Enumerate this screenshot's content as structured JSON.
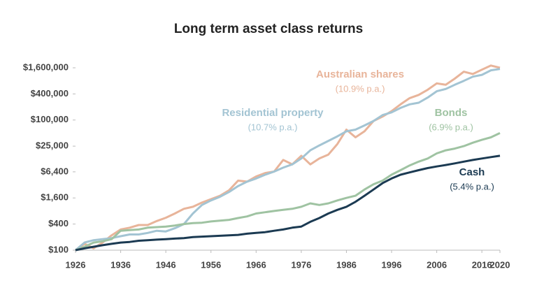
{
  "chart_data": {
    "type": "line",
    "title": "Long term asset class returns",
    "log_scale": true,
    "grid": false,
    "x": [
      1926,
      1928,
      1930,
      1932,
      1934,
      1936,
      1938,
      1940,
      1942,
      1944,
      1946,
      1948,
      1950,
      1952,
      1954,
      1956,
      1958,
      1960,
      1962,
      1964,
      1966,
      1968,
      1970,
      1972,
      1974,
      1976,
      1978,
      1980,
      1982,
      1984,
      1986,
      1988,
      1990,
      1992,
      1994,
      1996,
      1998,
      2000,
      2002,
      2004,
      2006,
      2008,
      2010,
      2012,
      2014,
      2016,
      2018,
      2020
    ],
    "series": [
      {
        "name": "Australian shares",
        "note": "(10.9% p.a.)",
        "color": "#e8b49a",
        "values": [
          100,
          140,
          110,
          150,
          220,
          300,
          330,
          380,
          380,
          470,
          560,
          700,
          900,
          1000,
          1250,
          1500,
          1800,
          2400,
          4000,
          3800,
          5000,
          6000,
          6500,
          12000,
          9500,
          15000,
          9500,
          13000,
          16000,
          28000,
          60000,
          40000,
          55000,
          95000,
          120000,
          160000,
          230000,
          320000,
          380000,
          500000,
          700000,
          650000,
          900000,
          1300000,
          1150000,
          1450000,
          1800000,
          1600000
        ]
      },
      {
        "name": "Residential property",
        "note": "(10.7% p.a.)",
        "color": "#a3c4d3",
        "values": [
          100,
          150,
          170,
          180,
          190,
          210,
          230,
          230,
          250,
          280,
          270,
          320,
          400,
          700,
          1100,
          1400,
          1700,
          2200,
          3000,
          3800,
          4500,
          5500,
          6500,
          8000,
          9500,
          13000,
          20000,
          26000,
          33000,
          42000,
          55000,
          60000,
          75000,
          95000,
          130000,
          150000,
          190000,
          230000,
          250000,
          330000,
          460000,
          520000,
          650000,
          800000,
          1000000,
          1100000,
          1400000,
          1500000
        ]
      },
      {
        "name": "Bonds",
        "note": "(6.9% p.a.)",
        "color": "#9fc3a2",
        "values": [
          100,
          120,
          150,
          160,
          180,
          280,
          290,
          300,
          330,
          340,
          350,
          370,
          400,
          420,
          430,
          460,
          480,
          500,
          550,
          600,
          700,
          750,
          800,
          850,
          900,
          1000,
          1200,
          1100,
          1200,
          1400,
          1600,
          1800,
          2500,
          3300,
          4000,
          5500,
          7000,
          9000,
          11000,
          13000,
          17000,
          20000,
          22000,
          25000,
          30000,
          35000,
          40000,
          50000
        ]
      },
      {
        "name": "Cash",
        "note": "(5.4% p.a.)",
        "color": "#1b3a52",
        "values": [
          100,
          110,
          120,
          130,
          140,
          150,
          155,
          165,
          170,
          175,
          180,
          185,
          190,
          200,
          205,
          210,
          215,
          220,
          225,
          240,
          250,
          260,
          280,
          300,
          330,
          350,
          450,
          550,
          700,
          850,
          1000,
          1300,
          1800,
          2500,
          3500,
          4500,
          5500,
          6200,
          7000,
          7800,
          8500,
          9200,
          10000,
          11000,
          12000,
          13000,
          14000,
          15000
        ]
      }
    ],
    "xlim": [
      1926,
      2020
    ],
    "xticks": [
      1926,
      1936,
      1946,
      1956,
      1966,
      1976,
      1986,
      1996,
      2006,
      2016,
      2020
    ],
    "ylim": [
      100,
      1600000
    ],
    "yticks": [
      {
        "value": 100,
        "label": "$100"
      },
      {
        "value": 400,
        "label": "$400"
      },
      {
        "value": 1600,
        "label": "$1,600"
      },
      {
        "value": 6400,
        "label": "$6,400"
      },
      {
        "value": 25000,
        "label": "$25,000"
      },
      {
        "value": 100000,
        "label": "$100,000"
      },
      {
        "value": 400000,
        "label": "$400,000"
      },
      {
        "value": 1600000,
        "label": "$1,600,000"
      }
    ]
  }
}
